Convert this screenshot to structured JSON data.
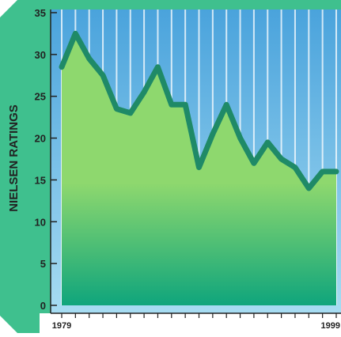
{
  "chart_data": {
    "type": "area",
    "title": "",
    "xlabel": "",
    "ylabel": "NIELSEN RATINGS",
    "x_tick_labels": [
      "1979",
      "1999"
    ],
    "x": [
      1979,
      1980,
      1981,
      1982,
      1983,
      1984,
      1985,
      1986,
      1987,
      1988,
      1989,
      1990,
      1991,
      1992,
      1993,
      1994,
      1995,
      1996,
      1997,
      1998,
      1999
    ],
    "series": [
      {
        "values": [
          28.5,
          32.5,
          29.5,
          27.5,
          23.5,
          23.0,
          25.5,
          28.5,
          24.0,
          24.0,
          16.5,
          20.5,
          24.0,
          20.0,
          17.0,
          19.5,
          17.5,
          16.5,
          14.0,
          16.0,
          16.0
        ]
      }
    ],
    "yticks": [
      0,
      5,
      10,
      15,
      20,
      25,
      30,
      35
    ],
    "ylim": [
      0,
      35
    ],
    "grid": "vertical",
    "colors": {
      "frame": "#3fc08e",
      "sky_top": "#4aa3dc",
      "sky_bottom": "#a7dcf2",
      "area_top": "#8ed86e",
      "area_bottom": "#0fa57c",
      "line": "#1f8a67",
      "text": "#222222",
      "grid": "#ffffff"
    }
  }
}
